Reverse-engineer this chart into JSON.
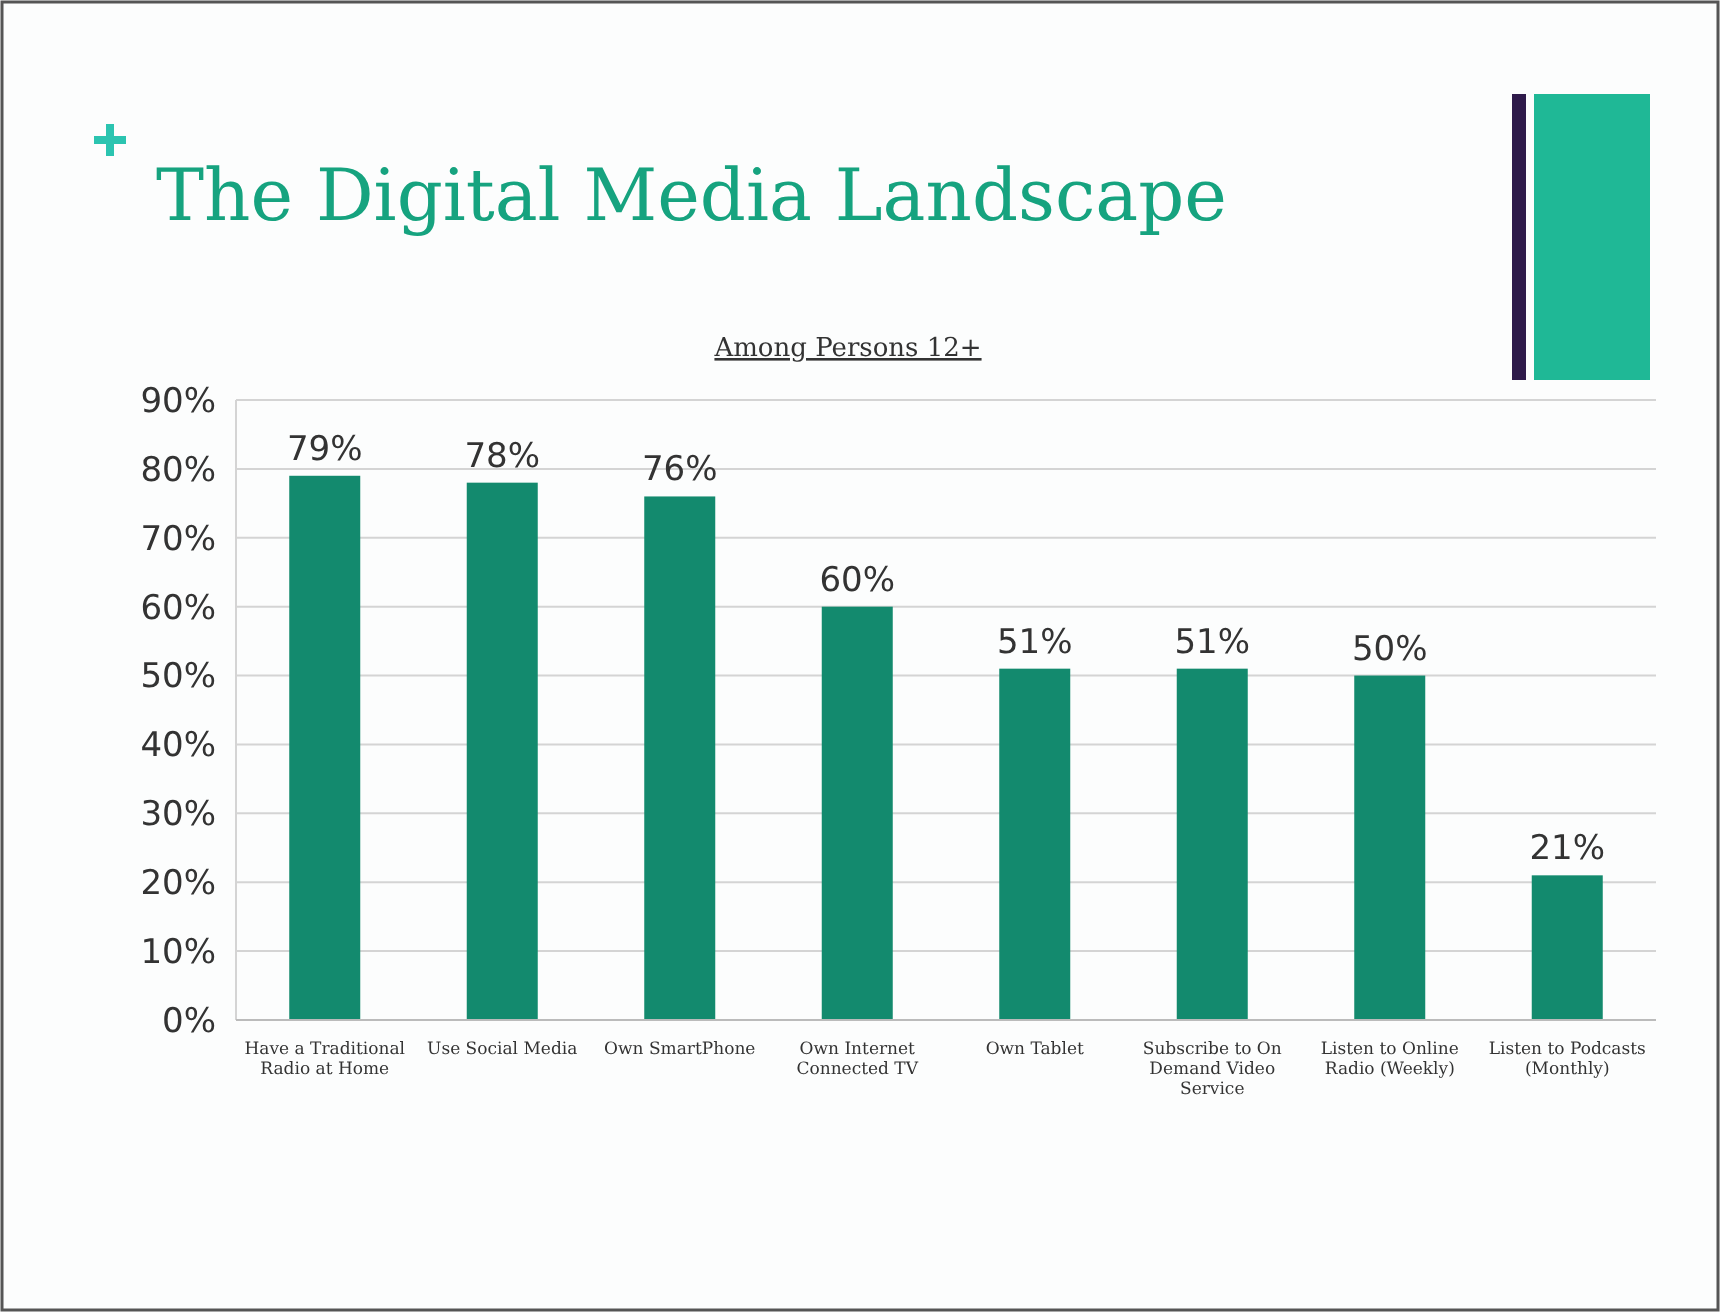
{
  "chart_data": {
    "type": "bar",
    "title": "The Digital Media Landscape",
    "subtitle": "Among Persons 12+",
    "categories": [
      "Have a Traditional Radio at Home",
      "Use Social Media",
      "Own SmartPhone",
      "Own Internet Connected TV",
      "Own Tablet",
      "Subscribe to On Demand Video Service",
      "Listen to Online Radio (Weekly)",
      "Listen to Podcasts (Monthly)"
    ],
    "values": [
      79,
      78,
      76,
      60,
      51,
      51,
      50,
      21
    ],
    "value_labels": [
      "79%",
      "78%",
      "76%",
      "60%",
      "51%",
      "51%",
      "50%",
      "21%"
    ],
    "color": "#138a6e",
    "ylim": [
      0,
      90
    ],
    "yticks": [
      {
        "value": 0,
        "label": "0%"
      },
      {
        "value": 10,
        "label": "10%"
      },
      {
        "value": 20,
        "label": "20%"
      },
      {
        "value": 30,
        "label": "30%"
      },
      {
        "value": 40,
        "label": "40%"
      },
      {
        "value": 50,
        "label": "50%"
      },
      {
        "value": 60,
        "label": "60%"
      },
      {
        "value": 70,
        "label": "70%"
      },
      {
        "value": 80,
        "label": "80%"
      },
      {
        "value": 90,
        "label": "90%"
      }
    ],
    "grid": "y"
  }
}
